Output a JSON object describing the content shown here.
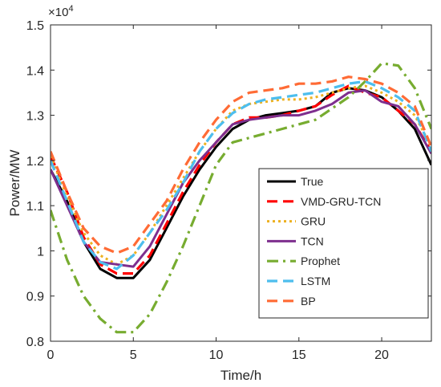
{
  "chart_data": {
    "type": "line",
    "xlabel": "Time/h",
    "ylabel": "Power/MW",
    "exponent_label": "×10",
    "exponent_power": "4",
    "xlim": [
      0,
      23
    ],
    "ylim": [
      0.8,
      1.5
    ],
    "xticks": [
      0,
      5,
      10,
      15,
      20
    ],
    "yticks": [
      0.8,
      0.9,
      1,
      1.1,
      1.2,
      1.3,
      1.4,
      1.5
    ],
    "ytick_labels": [
      "0.8",
      "0.9",
      "1",
      "1.1",
      "1.2",
      "1.3",
      "1.4",
      "1.5"
    ],
    "legend_position": "lower-right",
    "x": [
      0,
      1,
      2,
      3,
      4,
      5,
      6,
      7,
      8,
      9,
      10,
      11,
      12,
      13,
      14,
      15,
      16,
      17,
      18,
      19,
      20,
      21,
      22,
      23
    ],
    "series": [
      {
        "name": "True",
        "color": "#000000",
        "dash": "solid",
        "values": [
          1.18,
          1.11,
          1.02,
          0.96,
          0.94,
          0.94,
          0.98,
          1.05,
          1.12,
          1.18,
          1.23,
          1.27,
          1.29,
          1.3,
          1.305,
          1.31,
          1.32,
          1.35,
          1.36,
          1.355,
          1.34,
          1.31,
          1.27,
          1.19
        ]
      },
      {
        "name": "VMD-GRU-TCN",
        "color": "#ff0000",
        "dash": "dashed",
        "values": [
          1.21,
          1.13,
          1.03,
          0.97,
          0.95,
          0.95,
          0.99,
          1.06,
          1.13,
          1.19,
          1.24,
          1.28,
          1.295,
          1.295,
          1.3,
          1.31,
          1.32,
          1.345,
          1.365,
          1.35,
          1.34,
          1.31,
          1.28,
          1.22
        ]
      },
      {
        "name": "GRU",
        "color": "#edb120",
        "dash": "dotted",
        "values": [
          1.21,
          1.12,
          1.04,
          0.99,
          0.97,
          0.99,
          1.04,
          1.1,
          1.16,
          1.22,
          1.27,
          1.31,
          1.325,
          1.33,
          1.335,
          1.335,
          1.34,
          1.35,
          1.36,
          1.365,
          1.35,
          1.33,
          1.3,
          1.23
        ]
      },
      {
        "name": "TCN",
        "color": "#7e2f8e",
        "dash": "solid",
        "values": [
          1.18,
          1.1,
          1.02,
          0.975,
          0.97,
          0.965,
          1.01,
          1.08,
          1.15,
          1.2,
          1.24,
          1.28,
          1.29,
          1.295,
          1.3,
          1.3,
          1.31,
          1.325,
          1.35,
          1.355,
          1.33,
          1.32,
          1.28,
          1.215
        ]
      },
      {
        "name": "Prophet",
        "color": "#77ac30",
        "dash": "dashdot",
        "values": [
          1.09,
          0.98,
          0.9,
          0.85,
          0.82,
          0.82,
          0.86,
          0.93,
          1.01,
          1.1,
          1.19,
          1.24,
          1.25,
          1.26,
          1.27,
          1.28,
          1.29,
          1.315,
          1.34,
          1.375,
          1.415,
          1.41,
          1.36,
          1.27
        ]
      },
      {
        "name": "LSTM",
        "color": "#4dbeee",
        "dash": "dashed",
        "values": [
          1.2,
          1.11,
          1.02,
          0.975,
          0.96,
          0.99,
          1.04,
          1.09,
          1.15,
          1.22,
          1.27,
          1.305,
          1.325,
          1.335,
          1.34,
          1.345,
          1.35,
          1.36,
          1.37,
          1.375,
          1.36,
          1.34,
          1.31,
          1.22
        ]
      },
      {
        "name": "BP",
        "color": "#ff6b35",
        "dash": "dashed",
        "values": [
          1.22,
          1.13,
          1.05,
          1.01,
          0.995,
          1.01,
          1.06,
          1.11,
          1.18,
          1.24,
          1.29,
          1.33,
          1.35,
          1.355,
          1.36,
          1.37,
          1.37,
          1.375,
          1.385,
          1.38,
          1.37,
          1.35,
          1.32,
          1.23
        ]
      }
    ]
  }
}
